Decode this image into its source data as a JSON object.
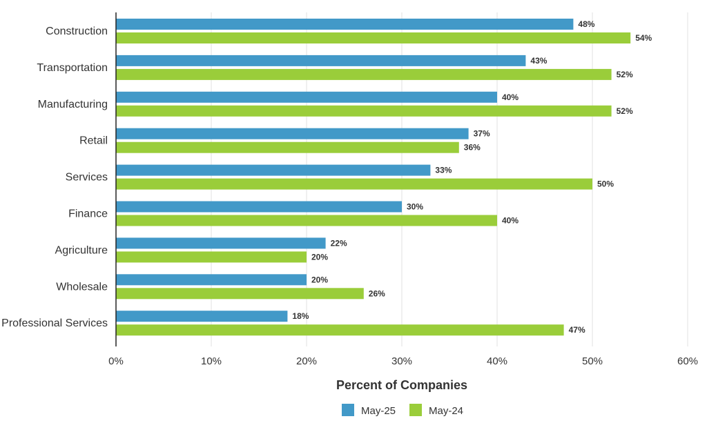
{
  "chart_data": {
    "type": "bar",
    "orientation": "horizontal",
    "categories": [
      "Construction",
      "Transportation",
      "Manufacturing",
      "Retail",
      "Services",
      "Finance",
      "Agriculture",
      "Wholesale",
      "Professional Services"
    ],
    "series": [
      {
        "name": "May-25",
        "color": "#4299c8",
        "values": [
          48,
          43,
          40,
          37,
          33,
          30,
          22,
          20,
          18
        ]
      },
      {
        "name": "May-24",
        "color": "#9acd3a",
        "values": [
          54,
          52,
          52,
          36,
          50,
          40,
          20,
          26,
          47
        ]
      }
    ],
    "xlabel": "Percent of Companies",
    "ylabel": "",
    "xlim": [
      0,
      60
    ],
    "xticks": [
      0,
      10,
      20,
      30,
      40,
      50,
      60
    ],
    "tick_suffix": "%",
    "grid": "vertical",
    "legend": "bottom-center"
  }
}
